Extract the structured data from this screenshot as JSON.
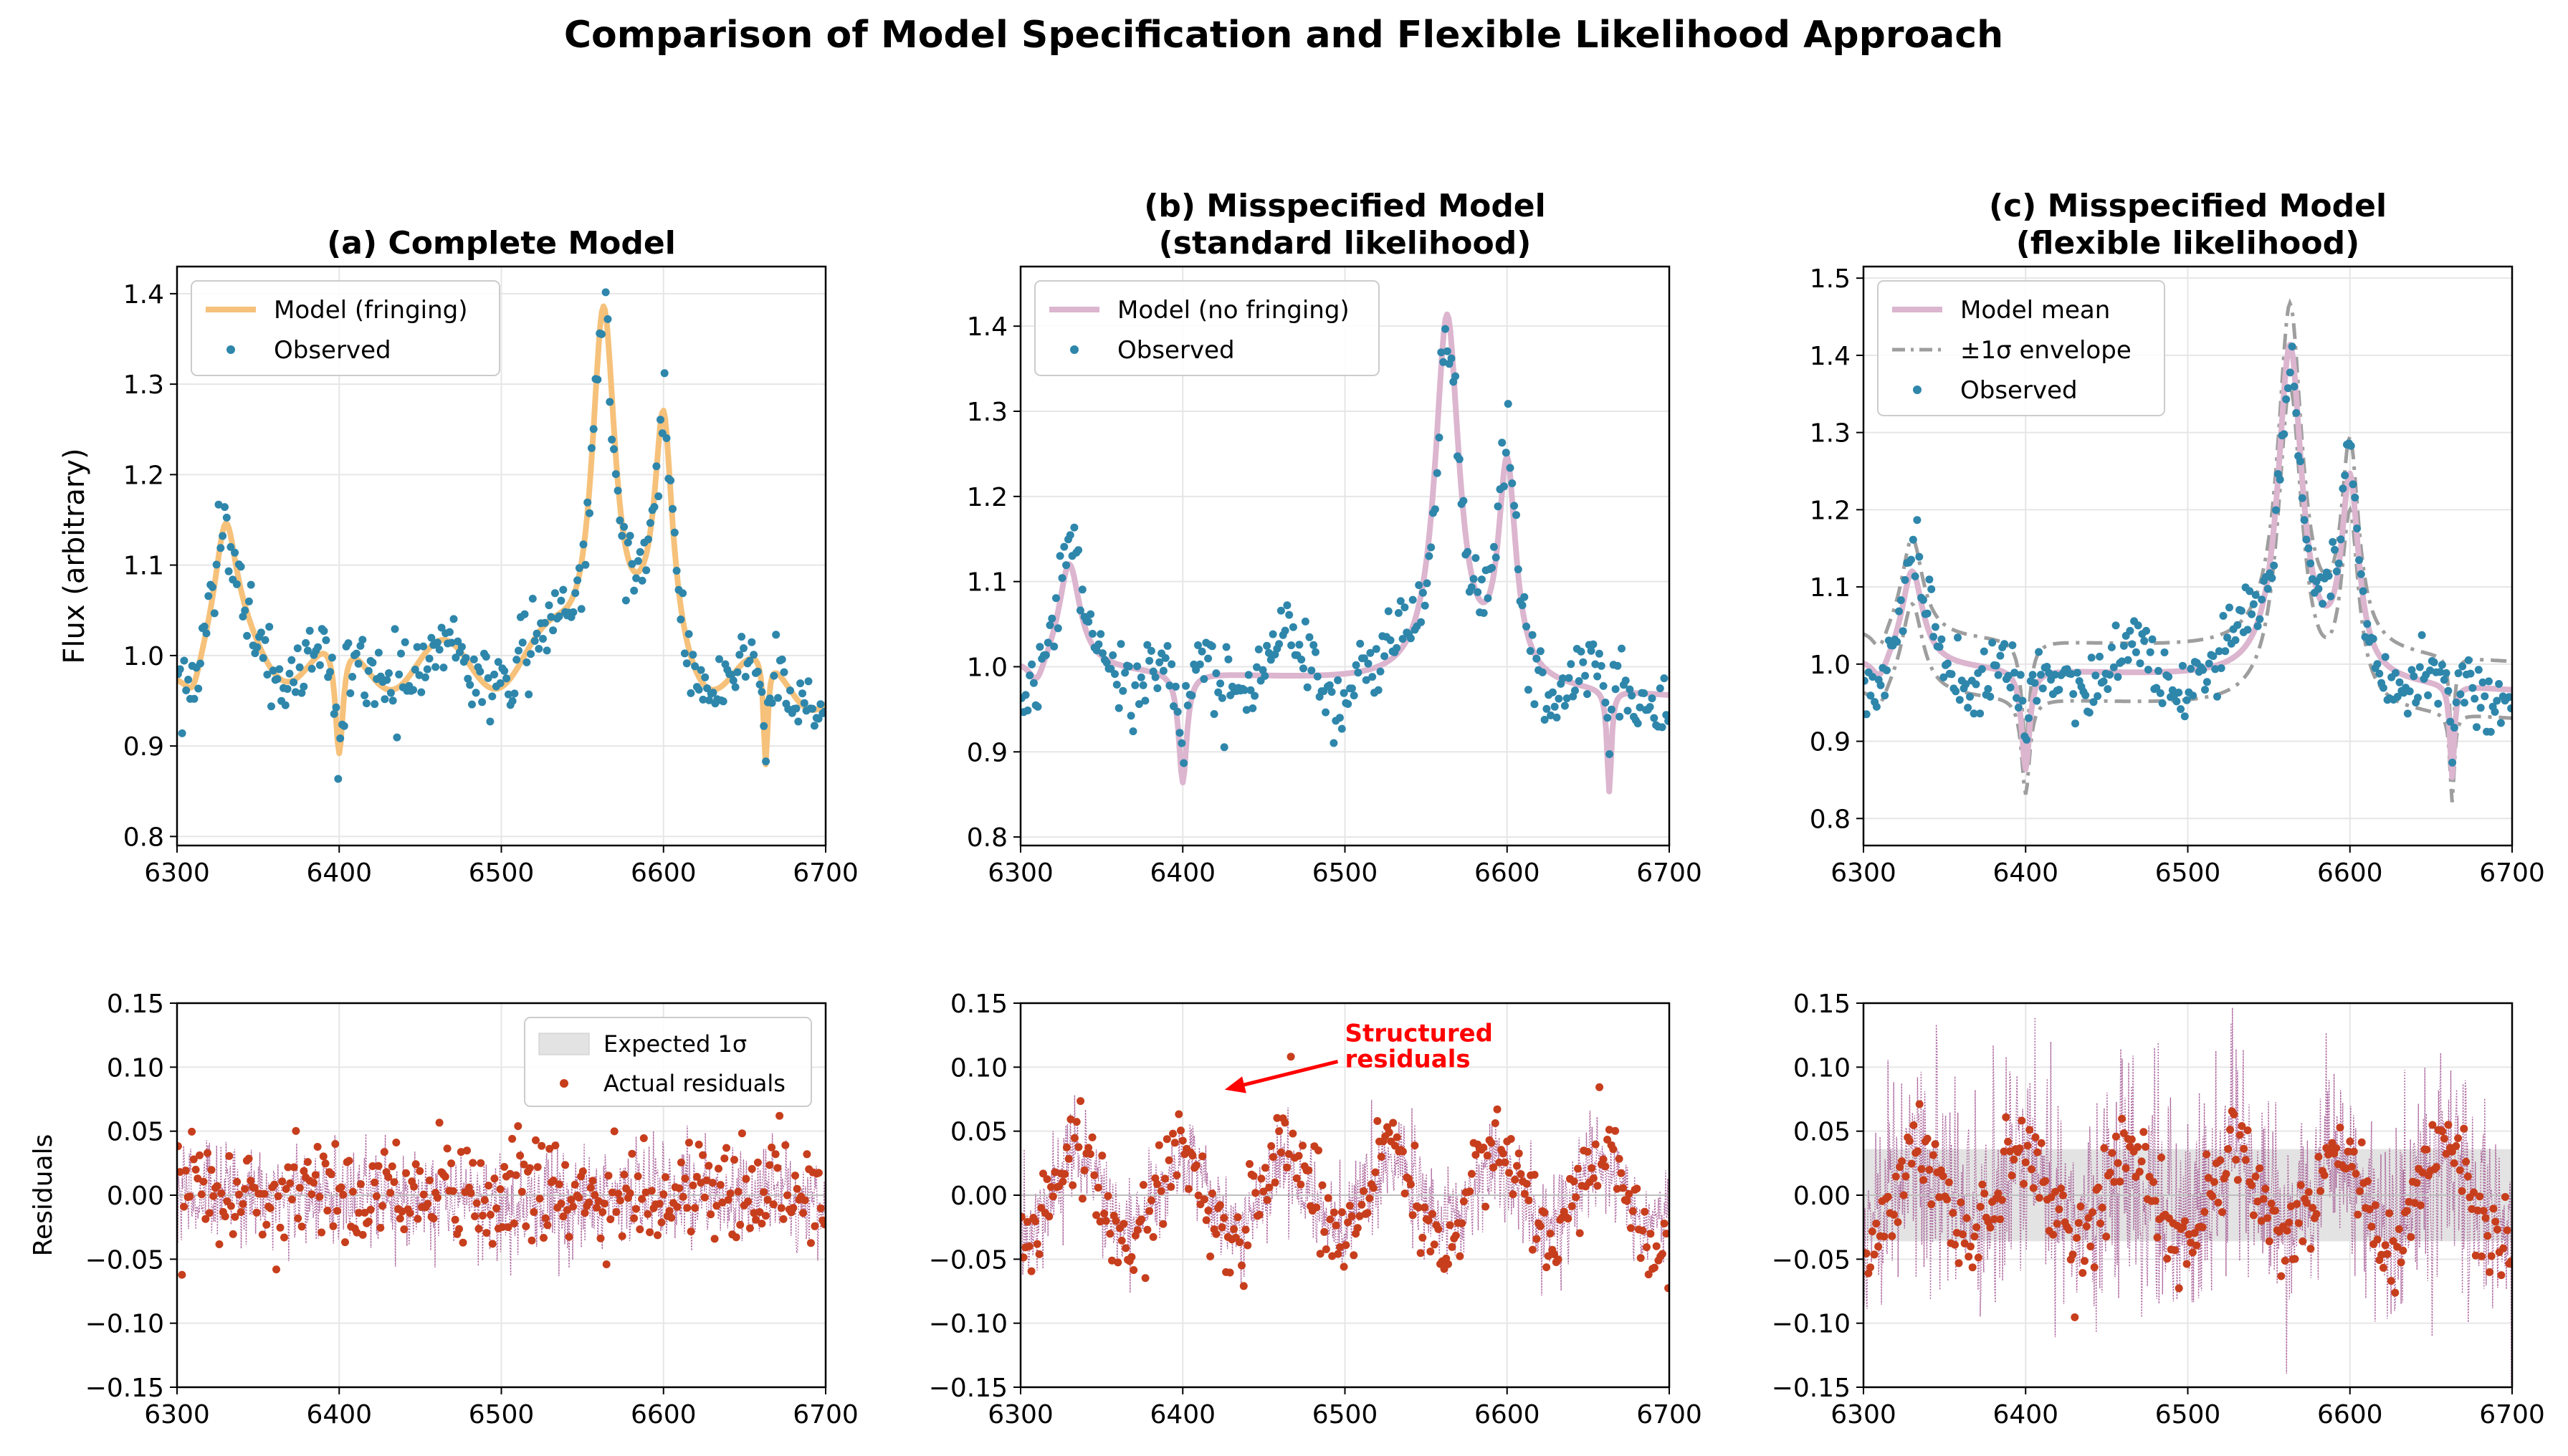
{
  "figure_title": "Comparison of Model Specification and Flexible Likelihood Approach",
  "colors": {
    "observed": "#2e86ab",
    "residual": "#c73e1d",
    "fringe_model": "#f6c17a",
    "nofringe_model": "#dcb5cf",
    "envelope": "#9e9e9e",
    "noise_band": "#e3e3e3",
    "noise_trace": "#a04f8e",
    "annotation": "#ff0000"
  },
  "chart_data": [
    {
      "id": "a_top",
      "type": "line",
      "title": "(a) Complete Model",
      "xlabel": "",
      "ylabel": "Flux (arbitrary)",
      "xlim": [
        6300,
        6700
      ],
      "ylim": [
        0.79,
        1.43
      ],
      "xticks": [
        "6300",
        "6400",
        "6500",
        "6600",
        "6700"
      ],
      "yticks": [
        "0.8",
        "0.9",
        "1.0",
        "1.1",
        "1.2",
        "1.3",
        "1.4"
      ],
      "grid": true,
      "legend_location": "top-left",
      "series": [
        {
          "name": "Model (fringing)",
          "kind": "model_line",
          "fringing": true
        },
        {
          "name": "Observed",
          "kind": "observed_points",
          "noise": 0.022,
          "n": 320
        }
      ]
    },
    {
      "id": "b_top",
      "type": "line",
      "title": "(b) Misspecified Model",
      "title_line2": "(standard likelihood)",
      "xlabel": "",
      "ylabel": "",
      "xlim": [
        6300,
        6700
      ],
      "ylim": [
        0.79,
        1.47
      ],
      "xticks": [
        "6300",
        "6400",
        "6500",
        "6600",
        "6700"
      ],
      "yticks": [
        "0.8",
        "0.9",
        "1.0",
        "1.1",
        "1.2",
        "1.3",
        "1.4"
      ],
      "grid": true,
      "legend_location": "top-left",
      "series": [
        {
          "name": "Model (no fringing)",
          "kind": "model_line",
          "fringing": false
        },
        {
          "name": "Observed",
          "kind": "observed_points",
          "noise": 0.022,
          "n": 320
        }
      ]
    },
    {
      "id": "c_top",
      "type": "line",
      "title": "(c) Misspecified Model",
      "title_line2": "(flexible likelihood)",
      "xlabel": "",
      "ylabel": "",
      "xlim": [
        6300,
        6700
      ],
      "ylim": [
        0.765,
        1.515
      ],
      "xticks": [
        "6300",
        "6400",
        "6500",
        "6600",
        "6700"
      ],
      "yticks": [
        "0.8",
        "0.9",
        "1.0",
        "1.1",
        "1.2",
        "1.3",
        "1.4",
        "1.5"
      ],
      "grid": true,
      "legend_location": "top-left",
      "series": [
        {
          "name": "Model mean",
          "kind": "model_line",
          "fringing": false
        },
        {
          "name": "±1σ envelope",
          "kind": "envelope",
          "halfwidth": 0.038
        },
        {
          "name": "Observed",
          "kind": "observed_points",
          "noise": 0.022,
          "n": 320
        }
      ]
    },
    {
      "id": "a_bottom",
      "type": "scatter",
      "title": "",
      "xlabel": "",
      "ylabel": "Residuals",
      "xlim": [
        6300,
        6700
      ],
      "ylim": [
        -0.15,
        0.15
      ],
      "xticks": [
        "6300",
        "6400",
        "6500",
        "6600",
        "6700"
      ],
      "yticks": [
        "0.15",
        "0.10",
        "0.05",
        "0.00",
        "−0.05",
        "−0.10",
        "−0.15"
      ],
      "grid": true,
      "legend_location": "top-right",
      "band_halfwidth": 0.0,
      "residual_structure": 0.0,
      "residual_noise": 0.022,
      "trace_amp": 0.028,
      "series": [
        {
          "name": "Expected 1σ",
          "kind": "band"
        },
        {
          "name": "Actual residuals",
          "kind": "residual_points"
        }
      ]
    },
    {
      "id": "b_bottom",
      "type": "scatter",
      "title": "",
      "xlabel": "",
      "ylabel": "",
      "xlim": [
        6300,
        6700
      ],
      "ylim": [
        -0.15,
        0.15
      ],
      "xticks": [
        "6300",
        "6400",
        "6500",
        "6600",
        "6700"
      ],
      "yticks": [
        "0.15",
        "0.10",
        "0.05",
        "0.00",
        "−0.05",
        "−0.10",
        "−0.15"
      ],
      "grid": true,
      "band_halfwidth": 0.0,
      "residual_structure": 0.04,
      "residual_noise": 0.017,
      "trace_amp": 0.028,
      "annotation": {
        "text_line1": "Structured",
        "text_line2": "residuals",
        "arrow_to": [
          6425,
          0.083
        ],
        "text_at": [
          6500,
          0.11
        ]
      },
      "series": [
        {
          "name": "Actual residuals",
          "kind": "residual_points"
        }
      ]
    },
    {
      "id": "c_bottom",
      "type": "scatter",
      "title": "",
      "xlabel": "",
      "ylabel": "",
      "xlim": [
        6300,
        6700
      ],
      "ylim": [
        -0.15,
        0.15
      ],
      "xticks": [
        "6300",
        "6400",
        "6500",
        "6600",
        "6700"
      ],
      "yticks": [
        "0.15",
        "0.10",
        "0.05",
        "0.00",
        "−0.05",
        "−0.10",
        "−0.15"
      ],
      "grid": true,
      "band_halfwidth": 0.036,
      "residual_structure": 0.04,
      "residual_noise": 0.017,
      "trace_amp": 0.06,
      "series": [
        {
          "name": "Expected 1σ",
          "kind": "band"
        },
        {
          "name": "Actual residuals",
          "kind": "residual_points"
        }
      ]
    }
  ]
}
